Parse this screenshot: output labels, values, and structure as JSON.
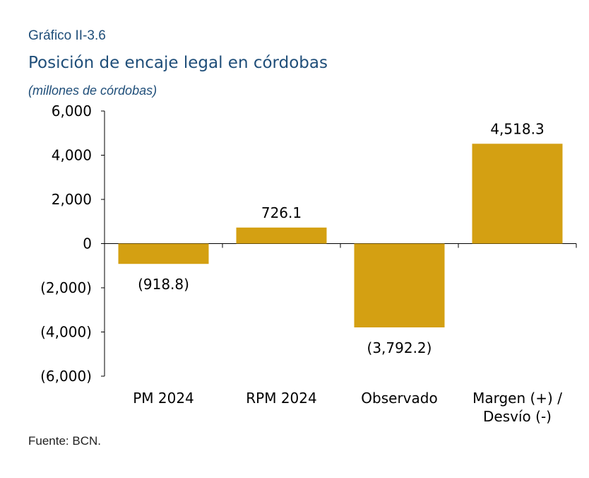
{
  "figure": {
    "number": "Gráfico II-3.6",
    "title": "Posición de encaje legal en córdobas",
    "subtitle": "(millones de córdobas)",
    "source": "Fuente: BCN."
  },
  "chart_data": {
    "type": "bar",
    "categories": [
      [
        "PM 2024"
      ],
      [
        "RPM 2024"
      ],
      [
        "Observado"
      ],
      [
        "Margen (+) /",
        "Desvío (-)"
      ]
    ],
    "values": [
      -918.8,
      726.1,
      -3792.2,
      4518.3
    ],
    "value_labels": [
      "(918.8)",
      "726.1",
      "(3,792.2)",
      "4,518.3"
    ],
    "ylim": [
      -6000,
      6000
    ],
    "yticks": [
      6000,
      4000,
      2000,
      0,
      -2000,
      -4000,
      -6000
    ],
    "ytick_labels": [
      "6,000",
      "4,000",
      "2,000",
      "0",
      "(2,000)",
      "(4,000)",
      "(6,000)"
    ],
    "bar_color": "#d4a012",
    "grid": false,
    "legend": "none"
  }
}
